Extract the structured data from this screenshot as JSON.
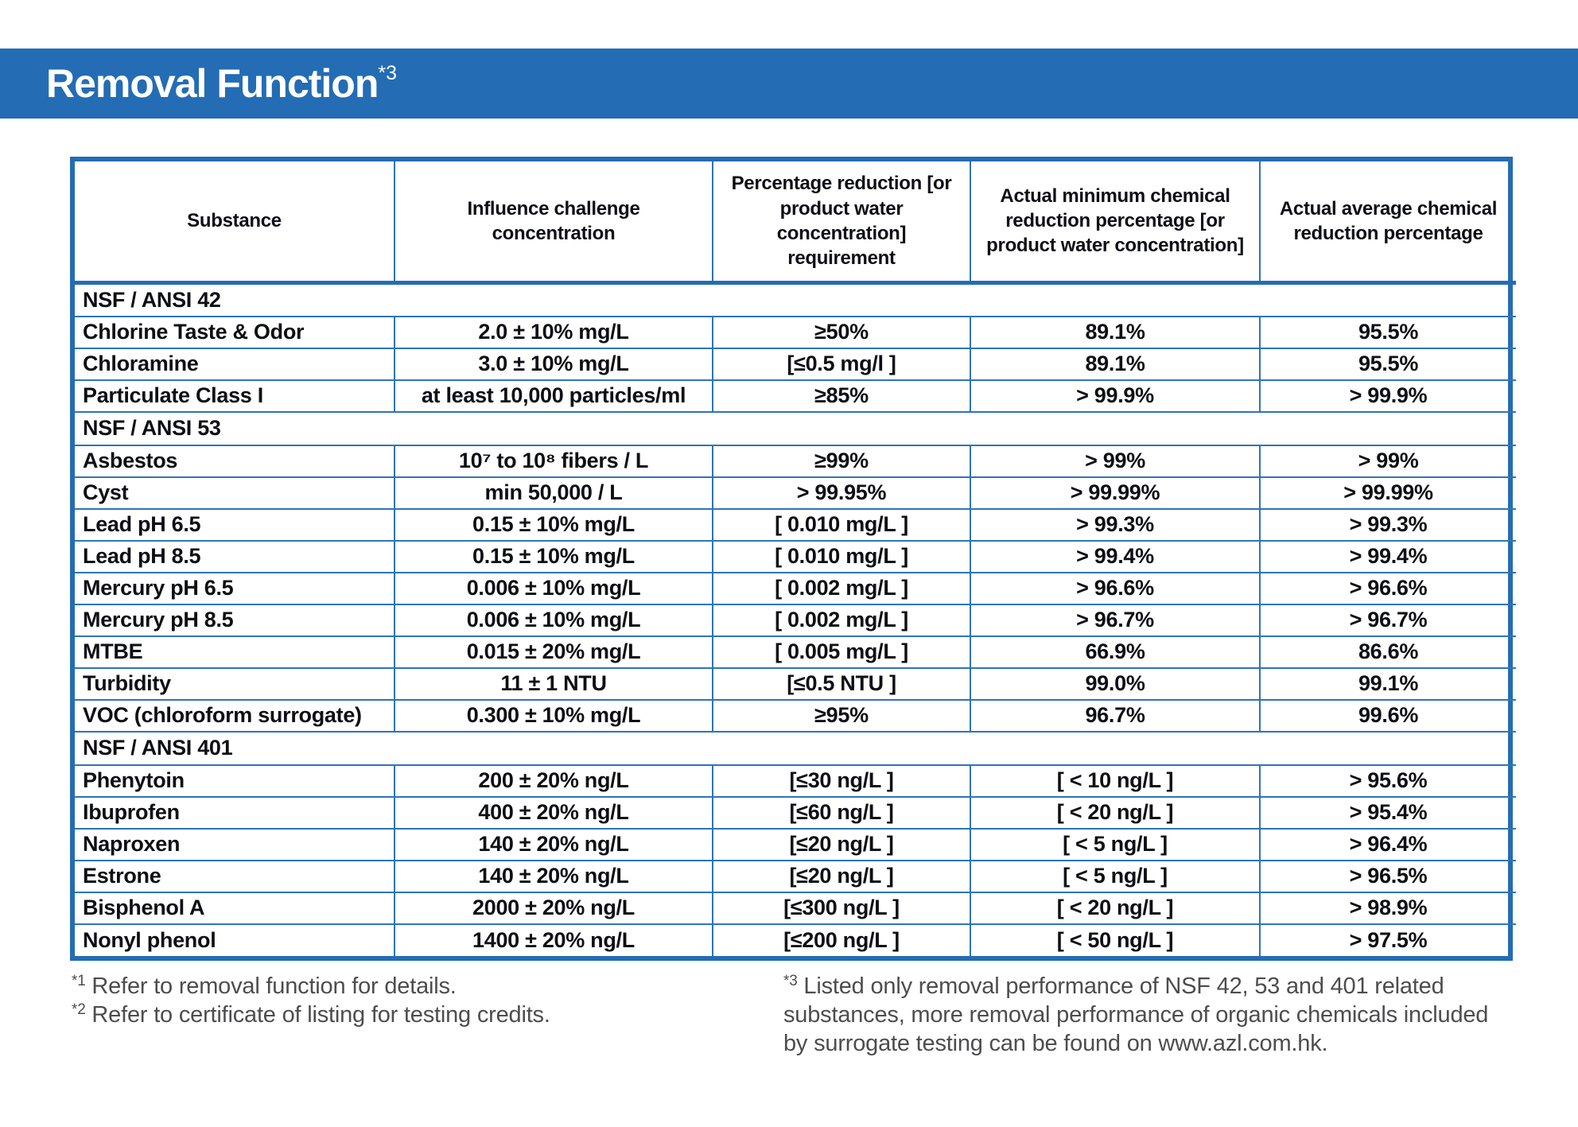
{
  "header": {
    "title": "Removal Function",
    "title_superscript": "*3"
  },
  "colors": {
    "accent_blue": "#246cb4",
    "grid_blue": "#2e75b6",
    "text_dark": "#0e0f15",
    "footnote_gray": "#4d4d4f"
  },
  "table": {
    "columns": [
      "Substance",
      "Influence challenge concentration",
      "Percentage reduction [or product water concentration] requirement",
      "Actual minimum chemical reduction percentage [or product water concentration]",
      "Actual average chemical reduction percentage"
    ],
    "sections": [
      {
        "name": "NSF / ANSI 42",
        "rows": [
          [
            "Chlorine Taste & Odor",
            "2.0 ± 10% mg/L",
            "≥50%",
            "89.1%",
            "95.5%"
          ],
          [
            "Chloramine",
            "3.0 ± 10% mg/L",
            "[≤0.5 mg/l ]",
            "89.1%",
            "95.5%"
          ],
          [
            "Particulate Class I",
            "at least 10,000 particles/ml",
            "≥85%",
            "> 99.9%",
            "> 99.9%"
          ]
        ]
      },
      {
        "name": "NSF / ANSI 53",
        "rows": [
          [
            "Asbestos",
            "10⁷ to 10⁸ fibers / L",
            "≥99%",
            "> 99%",
            "> 99%"
          ],
          [
            "Cyst",
            "min 50,000 / L",
            "> 99.95%",
            "> 99.99%",
            "> 99.99%"
          ],
          [
            "Lead pH 6.5",
            "0.15 ± 10% mg/L",
            "[ 0.010 mg/L ]",
            "> 99.3%",
            "> 99.3%"
          ],
          [
            "Lead pH 8.5",
            "0.15 ± 10% mg/L",
            "[ 0.010 mg/L ]",
            "> 99.4%",
            "> 99.4%"
          ],
          [
            "Mercury pH 6.5",
            "0.006 ± 10% mg/L",
            "[ 0.002 mg/L ]",
            "> 96.6%",
            "> 96.6%"
          ],
          [
            "Mercury pH 8.5",
            "0.006 ± 10% mg/L",
            "[ 0.002 mg/L ]",
            "> 96.7%",
            "> 96.7%"
          ],
          [
            "MTBE",
            "0.015 ± 20% mg/L",
            "[ 0.005 mg/L ]",
            "66.9%",
            "86.6%"
          ],
          [
            "Turbidity",
            "11 ± 1 NTU",
            "[≤0.5 NTU ]",
            "99.0%",
            "99.1%"
          ],
          [
            "VOC (chloroform surrogate)",
            "0.300 ± 10% mg/L",
            "≥95%",
            "96.7%",
            "99.6%"
          ]
        ]
      },
      {
        "name": "NSF / ANSI 401",
        "rows": [
          [
            "Phenytoin",
            "200 ± 20% ng/L",
            "[≤30 ng/L ]",
            "[ < 10 ng/L ]",
            "> 95.6%"
          ],
          [
            "Ibuprofen",
            "400 ± 20% ng/L",
            "[≤60 ng/L ]",
            "[ < 20 ng/L ]",
            "> 95.4%"
          ],
          [
            "Naproxen",
            "140 ± 20% ng/L",
            "[≤20 ng/L ]",
            "[ < 5 ng/L ]",
            "> 96.4%"
          ],
          [
            "Estrone",
            "140 ± 20% ng/L",
            "[≤20 ng/L ]",
            "[ < 5 ng/L ]",
            "> 96.5%"
          ],
          [
            "Bisphenol A",
            "2000 ± 20% ng/L",
            "[≤300 ng/L ]",
            "[ < 20 ng/L ]",
            "> 98.9%"
          ],
          [
            "Nonyl phenol",
            "1400 ± 20% ng/L",
            "[≤200 ng/L ]",
            "[ < 50 ng/L ]",
            "> 97.5%"
          ]
        ]
      }
    ]
  },
  "footnotes": {
    "left": [
      {
        "marker": "*1",
        "text": "Refer to removal function for details."
      },
      {
        "marker": "*2",
        "text": "Refer to certificate of listing for testing credits."
      }
    ],
    "right": {
      "marker": "*3",
      "text": "Listed only removal performance of NSF 42, 53 and 401 related substances, more removal performance of organic chemicals included by surrogate testing can be found on www.azl.com.hk."
    }
  }
}
